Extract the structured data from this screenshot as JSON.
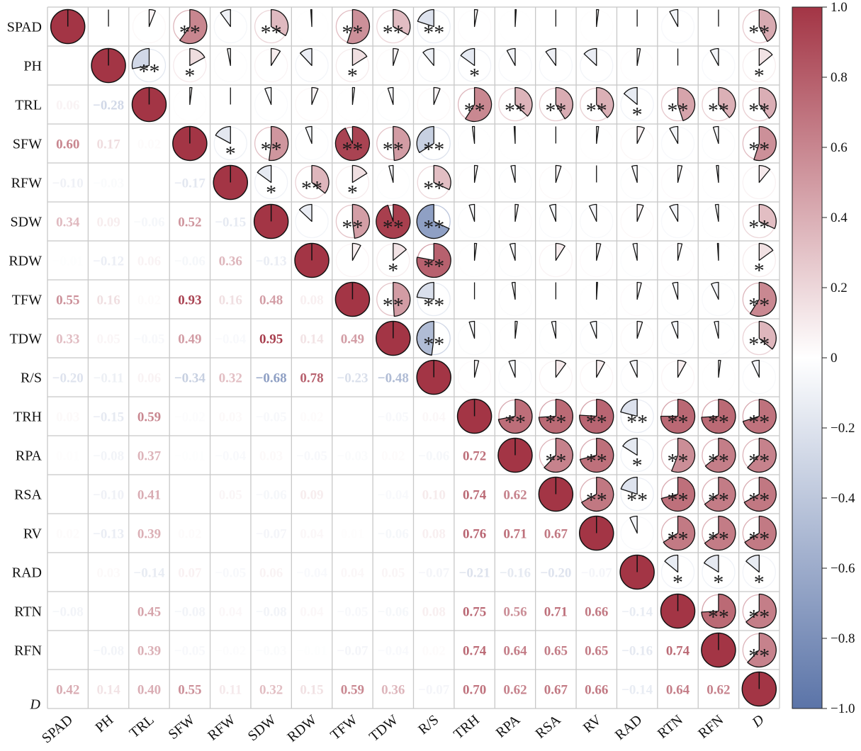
{
  "chart_data": {
    "type": "heatmap",
    "title": "",
    "variables": [
      "SPAD",
      "PH",
      "TRL",
      "SFW",
      "RFW",
      "SDW",
      "RDW",
      "TFW",
      "TDW",
      "R/S",
      "TRH",
      "RPA",
      "RSA",
      "RV",
      "RAD",
      "RTN",
      "RFN",
      "D"
    ],
    "italic_variables": [
      "D"
    ],
    "lower_triangle_correlations": [
      [],
      [
        0.0
      ],
      [
        0.06,
        -0.28
      ],
      [
        0.6,
        0.17,
        0.02
      ],
      [
        -0.1,
        -0.03,
        0.0,
        -0.17
      ],
      [
        0.34,
        0.09,
        -0.06,
        0.52,
        -0.15
      ],
      [
        -0.01,
        -0.12,
        0.06,
        -0.06,
        0.36,
        -0.13
      ],
      [
        0.55,
        0.16,
        0.02,
        0.93,
        0.16,
        0.48,
        0.08
      ],
      [
        0.33,
        0.05,
        -0.05,
        0.49,
        -0.04,
        0.95,
        0.14,
        0.49
      ],
      [
        -0.2,
        -0.11,
        0.06,
        -0.34,
        0.32,
        -0.68,
        0.78,
        -0.23,
        -0.48
      ],
      [
        0.03,
        -0.15,
        0.59,
        -0.02,
        0.03,
        -0.05,
        0.02,
        0.0,
        -0.05,
        0.04
      ],
      [
        0.01,
        -0.08,
        0.37,
        -0.01,
        -0.04,
        0.03,
        -0.05,
        -0.03,
        0.02,
        -0.06,
        0.72
      ],
      [
        0.0,
        -0.1,
        0.41,
        0.0,
        0.05,
        -0.06,
        0.09,
        0.0,
        -0.04,
        0.1,
        0.74,
        0.62
      ],
      [
        0.02,
        -0.13,
        0.39,
        0.02,
        0.0,
        -0.07,
        0.04,
        0.01,
        -0.06,
        0.08,
        0.76,
        0.71,
        0.67
      ],
      [
        0.0,
        0.03,
        -0.14,
        0.07,
        -0.05,
        0.06,
        -0.04,
        0.04,
        0.05,
        -0.07,
        -0.21,
        -0.16,
        -0.2,
        -0.07
      ],
      [
        -0.08,
        0.0,
        0.45,
        -0.08,
        0.04,
        -0.08,
        0.04,
        -0.05,
        -0.06,
        0.08,
        0.75,
        0.56,
        0.71,
        0.66,
        -0.14
      ],
      [
        0.0,
        -0.08,
        0.39,
        -0.05,
        -0.02,
        -0.03,
        -0.01,
        -0.07,
        -0.04,
        0.02,
        0.74,
        0.64,
        0.65,
        0.65,
        -0.16,
        0.74
      ],
      [
        0.42,
        0.14,
        0.4,
        0.55,
        0.11,
        0.32,
        0.15,
        0.59,
        0.36,
        -0.07,
        0.7,
        0.62,
        0.67,
        0.66,
        -0.14,
        0.64,
        0.62
      ]
    ],
    "upper_triangle": "pie (clockwise = positive, counter-clockwise = negative)",
    "significance_markers": {
      "single": "*",
      "double": "**",
      "single_min_abs_r": 0.14,
      "double_min_abs_r": 0.2
    },
    "colorbar": {
      "range": [
        -1.0,
        1.0
      ],
      "ticks": [
        "1.0",
        "0.8",
        "0.6",
        "0.4",
        "0.2",
        "0",
        "−0.2",
        "−0.4",
        "−0.6",
        "−0.8",
        "−1.0"
      ],
      "tick_values": [
        1.0,
        0.8,
        0.6,
        0.4,
        0.2,
        0,
        -0.2,
        -0.4,
        -0.6,
        -0.8,
        -1.0
      ],
      "positive_color": "#a33545",
      "zero_color": "#ffffff",
      "negative_color": "#5b74a8"
    },
    "grid_color": "#c8c8c8"
  }
}
